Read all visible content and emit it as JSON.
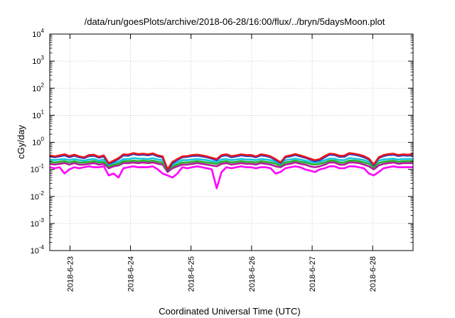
{
  "chart_data": {
    "type": "line",
    "title": "/data/run/goesPlots/archive/2018-06-28/16:00/flux/../bryn/5daysMoon.plot",
    "xlabel": "Coordinated Universal Time (UTC)",
    "ylabel": "cGy/day",
    "yscale": "log",
    "ylim": [
      0.0001,
      10000
    ],
    "y_ticks": [
      {
        "base": "10",
        "exp": "-4"
      },
      {
        "base": "10",
        "exp": "-3"
      },
      {
        "base": "10",
        "exp": "-2"
      },
      {
        "base": "10",
        "exp": "-1"
      },
      {
        "base": "10",
        "exp": "0"
      },
      {
        "base": "10",
        "exp": "1"
      },
      {
        "base": "10",
        "exp": "2"
      },
      {
        "base": "10",
        "exp": "3"
      },
      {
        "base": "10",
        "exp": "4"
      }
    ],
    "x_range": [
      "2018-06-22T16:00",
      "2018-06-28T16:00"
    ],
    "x_ticks": [
      "2018-6-23",
      "2018-6-24",
      "2018-6-25",
      "2018-6-26",
      "2018-6-27",
      "2018-6-28"
    ],
    "grid": true,
    "series": [
      {
        "color": "#e8151a",
        "values": [
          0.33,
          0.3,
          0.33,
          0.36,
          0.31,
          0.35,
          0.3,
          0.28,
          0.34,
          0.35,
          0.29,
          0.33,
          0.17,
          0.21,
          0.26,
          0.36,
          0.35,
          0.4,
          0.37,
          0.38,
          0.36,
          0.39,
          0.33,
          0.3,
          0.1,
          0.19,
          0.24,
          0.3,
          0.31,
          0.34,
          0.35,
          0.33,
          0.3,
          0.27,
          0.24,
          0.34,
          0.36,
          0.31,
          0.33,
          0.36,
          0.34,
          0.34,
          0.3,
          0.36,
          0.34,
          0.3,
          0.24,
          0.18,
          0.3,
          0.33,
          0.37,
          0.33,
          0.29,
          0.25,
          0.22,
          0.24,
          0.31,
          0.38,
          0.37,
          0.32,
          0.32,
          0.4,
          0.38,
          0.35,
          0.31,
          0.25,
          0.15,
          0.28,
          0.34,
          0.37,
          0.38,
          0.34,
          0.36,
          0.35,
          0.37
        ]
      },
      {
        "color": "#2a39c8",
        "values": [
          0.3,
          0.28,
          0.3,
          0.33,
          0.28,
          0.32,
          0.28,
          0.26,
          0.31,
          0.32,
          0.27,
          0.3,
          0.16,
          0.19,
          0.24,
          0.33,
          0.32,
          0.37,
          0.34,
          0.35,
          0.33,
          0.36,
          0.3,
          0.28,
          0.09,
          0.17,
          0.22,
          0.28,
          0.29,
          0.31,
          0.32,
          0.3,
          0.28,
          0.25,
          0.22,
          0.31,
          0.33,
          0.28,
          0.3,
          0.33,
          0.31,
          0.31,
          0.28,
          0.33,
          0.31,
          0.28,
          0.22,
          0.17,
          0.28,
          0.3,
          0.34,
          0.3,
          0.27,
          0.23,
          0.2,
          0.22,
          0.28,
          0.35,
          0.34,
          0.29,
          0.29,
          0.37,
          0.35,
          0.32,
          0.28,
          0.23,
          0.14,
          0.26,
          0.31,
          0.34,
          0.35,
          0.31,
          0.33,
          0.32,
          0.34
        ]
      },
      {
        "color": "#16c5dc",
        "values": [
          0.23,
          0.22,
          0.23,
          0.24,
          0.22,
          0.24,
          0.22,
          0.21,
          0.23,
          0.24,
          0.21,
          0.23,
          0.15,
          0.17,
          0.19,
          0.24,
          0.24,
          0.26,
          0.25,
          0.25,
          0.24,
          0.26,
          0.23,
          0.22,
          0.1,
          0.15,
          0.18,
          0.22,
          0.22,
          0.23,
          0.24,
          0.23,
          0.22,
          0.2,
          0.19,
          0.23,
          0.24,
          0.22,
          0.23,
          0.24,
          0.23,
          0.23,
          0.22,
          0.24,
          0.23,
          0.22,
          0.19,
          0.16,
          0.22,
          0.23,
          0.25,
          0.23,
          0.21,
          0.19,
          0.18,
          0.19,
          0.22,
          0.25,
          0.25,
          0.22,
          0.22,
          0.26,
          0.25,
          0.24,
          0.22,
          0.19,
          0.14,
          0.21,
          0.23,
          0.24,
          0.25,
          0.23,
          0.24,
          0.24,
          0.24
        ]
      },
      {
        "color": "#27b22c",
        "values": [
          0.19,
          0.18,
          0.19,
          0.2,
          0.18,
          0.2,
          0.18,
          0.18,
          0.19,
          0.2,
          0.18,
          0.19,
          0.13,
          0.15,
          0.16,
          0.2,
          0.2,
          0.21,
          0.2,
          0.21,
          0.2,
          0.21,
          0.19,
          0.18,
          0.09,
          0.13,
          0.15,
          0.18,
          0.18,
          0.19,
          0.2,
          0.19,
          0.18,
          0.17,
          0.16,
          0.19,
          0.2,
          0.18,
          0.19,
          0.2,
          0.19,
          0.19,
          0.18,
          0.2,
          0.19,
          0.18,
          0.16,
          0.14,
          0.18,
          0.19,
          0.21,
          0.19,
          0.18,
          0.16,
          0.15,
          0.16,
          0.18,
          0.21,
          0.21,
          0.18,
          0.18,
          0.21,
          0.21,
          0.2,
          0.18,
          0.16,
          0.12,
          0.17,
          0.19,
          0.2,
          0.21,
          0.19,
          0.2,
          0.2,
          0.2
        ]
      },
      {
        "color": "#b5189c",
        "values": [
          0.16,
          0.15,
          0.16,
          0.17,
          0.15,
          0.17,
          0.15,
          0.15,
          0.16,
          0.17,
          0.15,
          0.16,
          0.11,
          0.13,
          0.14,
          0.17,
          0.17,
          0.18,
          0.17,
          0.18,
          0.17,
          0.18,
          0.16,
          0.15,
          0.08,
          0.11,
          0.13,
          0.15,
          0.15,
          0.16,
          0.17,
          0.16,
          0.15,
          0.14,
          0.13,
          0.16,
          0.17,
          0.15,
          0.16,
          0.17,
          0.16,
          0.16,
          0.15,
          0.17,
          0.16,
          0.15,
          0.13,
          0.12,
          0.15,
          0.16,
          0.18,
          0.16,
          0.15,
          0.13,
          0.12,
          0.13,
          0.15,
          0.18,
          0.18,
          0.15,
          0.15,
          0.18,
          0.18,
          0.17,
          0.15,
          0.13,
          0.1,
          0.14,
          0.16,
          0.17,
          0.18,
          0.16,
          0.17,
          0.17,
          0.17
        ]
      },
      {
        "color": "#ff00ff",
        "values": [
          0.12,
          0.11,
          0.12,
          0.07,
          0.1,
          0.12,
          0.11,
          0.12,
          0.13,
          0.12,
          0.12,
          0.13,
          0.06,
          0.07,
          0.05,
          0.11,
          0.12,
          0.13,
          0.12,
          0.12,
          0.12,
          0.13,
          0.1,
          0.07,
          0.06,
          0.05,
          0.07,
          0.12,
          0.11,
          0.12,
          0.13,
          0.12,
          0.11,
          0.1,
          0.02,
          0.08,
          0.12,
          0.11,
          0.12,
          0.13,
          0.12,
          0.12,
          0.11,
          0.12,
          0.12,
          0.11,
          0.07,
          0.08,
          0.11,
          0.12,
          0.13,
          0.12,
          0.1,
          0.09,
          0.08,
          0.1,
          0.11,
          0.13,
          0.13,
          0.11,
          0.11,
          0.13,
          0.13,
          0.12,
          0.11,
          0.07,
          0.06,
          0.08,
          0.11,
          0.12,
          0.13,
          0.12,
          0.12,
          0.12,
          0.12
        ]
      }
    ]
  }
}
